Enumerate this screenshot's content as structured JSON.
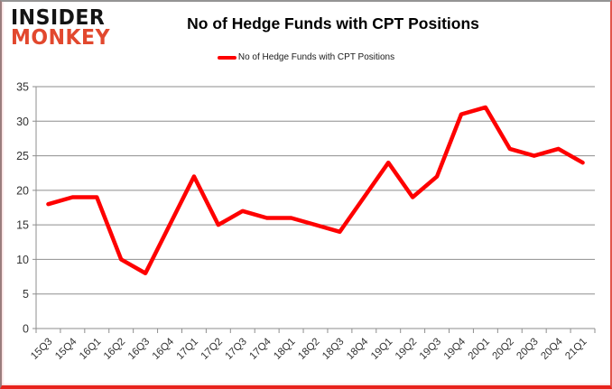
{
  "header": {
    "logo_line1": "INSIDER",
    "logo_line2": "MONKEY",
    "title": "No of Hedge Funds with CPT Positions"
  },
  "legend": {
    "label": "No of Hedge Funds with CPT Positions"
  },
  "colors": {
    "series_line": "#fe0000",
    "grid": "#8e8e8e",
    "axis_text": "#333333",
    "logo_black": "#141414",
    "logo_red": "#e2482e",
    "frame_red": "#e8231c",
    "frame_gray": "#949494"
  },
  "chart_data": {
    "type": "line",
    "title": "No of Hedge Funds with CPT Positions",
    "xlabel": "",
    "ylabel": "",
    "categories": [
      "15Q3",
      "15Q4",
      "16Q1",
      "16Q2",
      "16Q3",
      "16Q4",
      "17Q1",
      "17Q2",
      "17Q3",
      "17Q4",
      "18Q1",
      "18Q2",
      "18Q3",
      "18Q4",
      "19Q1",
      "19Q2",
      "19Q3",
      "19Q4",
      "20Q1",
      "20Q2",
      "20Q3",
      "20Q4",
      "21Q1"
    ],
    "series": [
      {
        "name": "No of Hedge Funds with CPT Positions",
        "values": [
          18,
          19,
          19,
          10,
          8,
          15,
          22,
          15,
          17,
          16,
          16,
          15,
          14,
          19,
          24,
          19,
          22,
          31,
          32,
          26,
          25,
          26,
          24
        ]
      }
    ],
    "ylim": [
      0,
      35
    ],
    "ytick_interval": 5,
    "yticks": [
      0,
      5,
      10,
      15,
      20,
      25,
      30,
      35
    ],
    "grid": true,
    "legend_position": "top-center"
  }
}
